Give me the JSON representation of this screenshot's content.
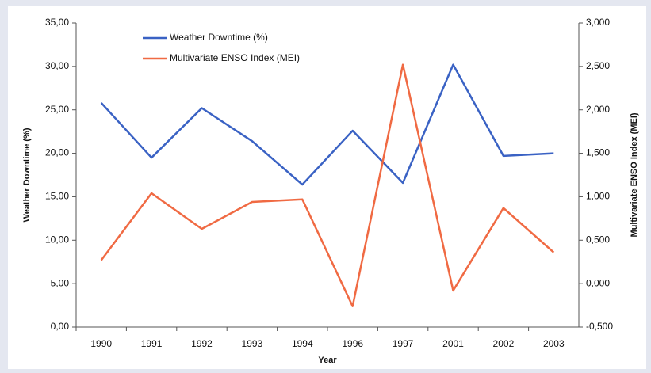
{
  "chart_data": {
    "type": "line",
    "x_label": "Year",
    "y_label": "Weather Downtime (%)",
    "y2_label": "Multivariate ENSO Index (MEI)",
    "categories": [
      "1990",
      "1991",
      "1992",
      "1993",
      "1994",
      "1996",
      "1997",
      "2001",
      "2002",
      "2003"
    ],
    "series": [
      {
        "name": "Weather Downtime (%)",
        "color": "#3a62c4",
        "values": [
          25.8,
          19.5,
          25.2,
          21.4,
          16.4,
          22.6,
          16.6,
          30.2,
          19.7,
          20.0
        ]
      },
      {
        "name": "Multivariate ENSO Index (MEI)",
        "color": "#f06a43",
        "axis": "y2",
        "values": [
          0.27,
          1.04,
          0.63,
          0.94,
          0.97,
          -0.26,
          2.52,
          -0.08,
          0.87,
          0.36
        ]
      }
    ],
    "ylim": [
      0,
      35
    ],
    "yticks": [
      {
        "value": 0,
        "label": "0,00"
      },
      {
        "value": 5,
        "label": "5,00"
      },
      {
        "value": 10,
        "label": "10,00"
      },
      {
        "value": 15,
        "label": "15,00"
      },
      {
        "value": 20,
        "label": "20,00"
      },
      {
        "value": 25,
        "label": "25,00"
      },
      {
        "value": 30,
        "label": "30,00"
      },
      {
        "value": 35,
        "label": "35,00"
      }
    ],
    "y2lim": [
      -0.5,
      3.0
    ],
    "y2ticks": [
      {
        "value": -0.5,
        "label": "-0,500"
      },
      {
        "value": 0,
        "label": "0,000"
      },
      {
        "value": 0.5,
        "label": "0,500"
      },
      {
        "value": 1.0,
        "label": "1,000"
      },
      {
        "value": 1.5,
        "label": "1,500"
      },
      {
        "value": 2.0,
        "label": "2,000"
      },
      {
        "value": 2.5,
        "label": "2,500"
      },
      {
        "value": 3.0,
        "label": "3,000"
      }
    ],
    "legend": "top-left"
  }
}
